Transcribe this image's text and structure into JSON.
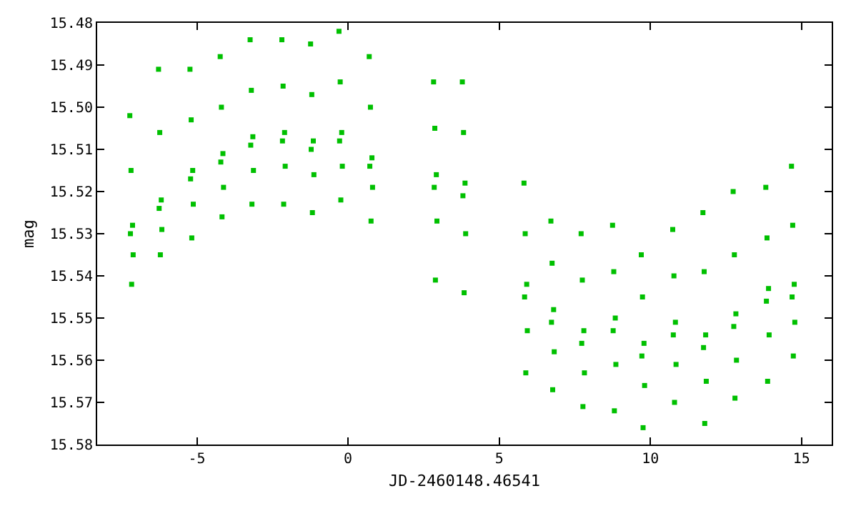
{
  "chart_data": {
    "type": "scatter",
    "xlabel": "JD-2460148.46541",
    "ylabel": "mag",
    "xlim": [
      -8.3,
      16
    ],
    "xticks": [
      -5,
      0,
      5,
      10,
      15
    ],
    "ylim": [
      15.58,
      15.48
    ],
    "yticks": [
      15.48,
      15.49,
      {
        "value": 15.5,
        "label": "15.50"
      },
      15.51,
      15.52,
      15.53,
      15.54,
      15.55,
      15.56,
      15.57,
      15.58
    ],
    "marker": "square",
    "series": [
      {
        "color": "#00c000",
        "x": [
          -7.22,
          -7.18,
          -7.13,
          -7.2,
          -7.11,
          -7.16,
          -6.27,
          -6.23,
          -6.18,
          -6.25,
          -6.16,
          -6.21,
          -5.23,
          -5.19,
          -5.14,
          -5.21,
          -5.12,
          -5.17,
          -4.23,
          -4.19,
          -4.14,
          -4.21,
          -4.12,
          -4.17,
          -3.24,
          -3.2,
          -3.15,
          -3.22,
          -3.13,
          -3.18,
          -2.19,
          -2.15,
          -2.1,
          -2.17,
          -2.08,
          -2.13,
          -1.24,
          -1.2,
          -1.15,
          -1.22,
          -1.13,
          -1.18,
          -0.3,
          -0.26,
          -0.21,
          -0.28,
          -0.19,
          -0.24,
          0.7,
          0.74,
          0.79,
          0.72,
          0.81,
          0.76,
          2.83,
          2.87,
          2.92,
          2.85,
          2.94,
          2.89,
          3.78,
          3.82,
          3.87,
          3.8,
          3.89,
          3.84,
          5.82,
          5.86,
          5.91,
          5.84,
          5.93,
          5.88,
          6.71,
          6.75,
          6.8,
          6.73,
          6.82,
          6.77,
          7.71,
          7.75,
          7.8,
          7.73,
          7.82,
          7.77,
          8.75,
          8.79,
          8.84,
          8.77,
          8.86,
          8.81,
          9.7,
          9.74,
          9.79,
          9.72,
          9.81,
          9.76,
          10.74,
          10.78,
          10.83,
          10.76,
          10.85,
          10.8,
          11.74,
          11.78,
          11.83,
          11.76,
          11.85,
          11.8,
          12.74,
          12.78,
          12.83,
          12.76,
          12.85,
          12.8,
          13.82,
          13.86,
          13.91,
          13.84,
          13.93,
          13.88,
          14.67,
          14.71,
          14.76,
          14.69,
          14.78,
          14.73
        ],
        "values": [
          15.502,
          15.515,
          15.528,
          15.53,
          15.535,
          15.542,
          15.491,
          15.506,
          15.522,
          15.524,
          15.529,
          15.535,
          15.491,
          15.503,
          15.515,
          15.517,
          15.523,
          15.531,
          15.488,
          15.5,
          15.511,
          15.513,
          15.519,
          15.526,
          15.484,
          15.496,
          15.507,
          15.509,
          15.515,
          15.523,
          15.484,
          15.495,
          15.506,
          15.508,
          15.514,
          15.523,
          15.485,
          15.497,
          15.508,
          15.51,
          15.516,
          15.525,
          15.482,
          15.494,
          15.506,
          15.508,
          15.514,
          15.522,
          15.488,
          15.5,
          15.512,
          15.514,
          15.519,
          15.527,
          15.494,
          15.505,
          15.516,
          15.519,
          15.527,
          15.541,
          15.494,
          15.506,
          15.518,
          15.521,
          15.53,
          15.544,
          15.518,
          15.53,
          15.542,
          15.545,
          15.553,
          15.563,
          15.527,
          15.537,
          15.548,
          15.551,
          15.558,
          15.567,
          15.53,
          15.541,
          15.553,
          15.556,
          15.563,
          15.571,
          15.528,
          15.539,
          15.55,
          15.553,
          15.561,
          15.572,
          15.535,
          15.545,
          15.556,
          15.559,
          15.566,
          15.576,
          15.529,
          15.54,
          15.551,
          15.554,
          15.561,
          15.57,
          15.525,
          15.539,
          15.554,
          15.557,
          15.565,
          15.575,
          15.52,
          15.535,
          15.549,
          15.552,
          15.56,
          15.569,
          15.519,
          15.531,
          15.543,
          15.546,
          15.554,
          15.565,
          15.514,
          15.528,
          15.542,
          15.545,
          15.551,
          15.559
        ]
      }
    ]
  }
}
